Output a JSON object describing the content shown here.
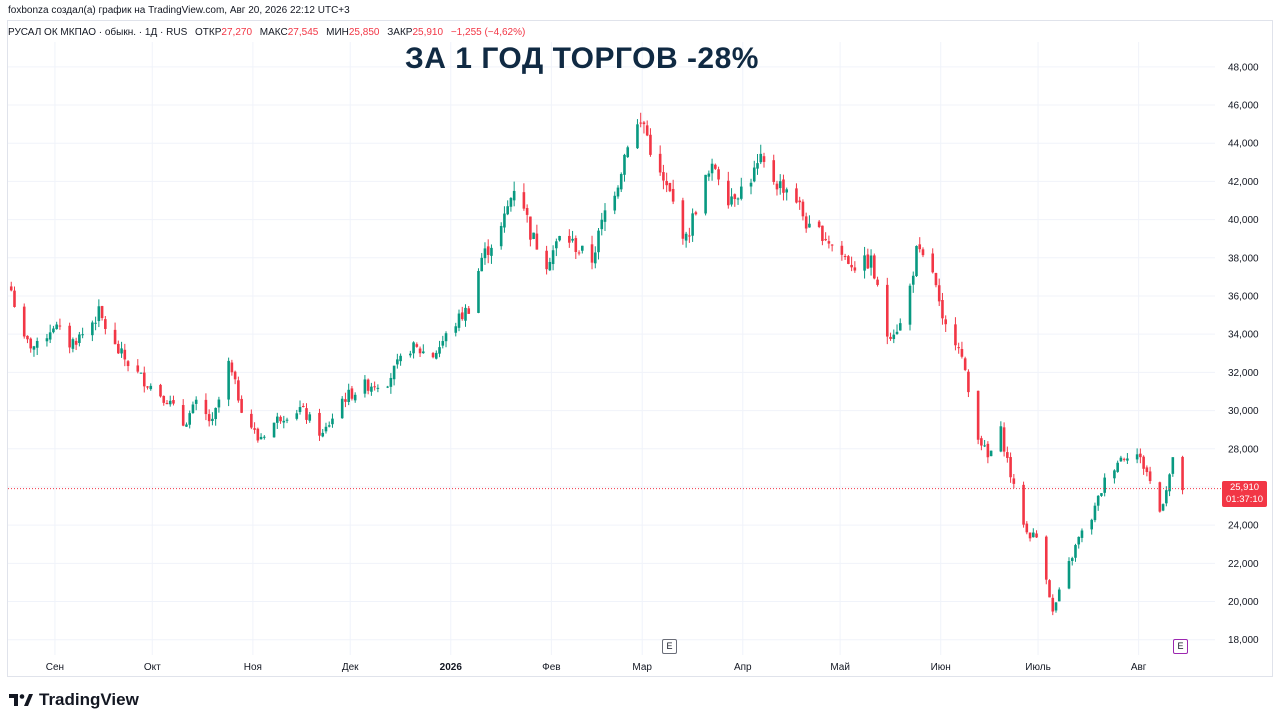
{
  "header": {
    "caption": "foxbonza создал(а) график на TradingView.com, Авг 20, 2026 22:12 UTC+3",
    "symbol": "РУСАЛ ОК МКПАО · обыкн. · 1Д · RUS",
    "open_label": "ОТКР",
    "open_value": "27,270",
    "high_label": "МАКС",
    "high_value": "27,545",
    "low_label": "МИН",
    "low_value": "25,850",
    "close_label": "ЗАКР",
    "close_value": "25,910",
    "change": "−1,255 (−4,62%)"
  },
  "headline": "ЗА 1 ГОД ТОРГОВ -28%",
  "price_label": {
    "price": "25,910",
    "countdown": "01:37:10"
  },
  "event_badge": "E",
  "brand": {
    "name": "TradingView"
  },
  "colors": {
    "up": "#089981",
    "down": "#f23645",
    "grid": "#f0f3fa",
    "axis_text": "#131722"
  },
  "chart_data": {
    "type": "candlestick",
    "title": "ЗА 1 ГОД ТОРГОВ -28%",
    "y_ticks": [
      "18,000",
      "20,000",
      "22,000",
      "24,000",
      "26,000",
      "28,000",
      "30,000",
      "32,000",
      "34,000",
      "36,000",
      "38,000",
      "40,000",
      "42,000",
      "44,000",
      "46,000",
      "48,000"
    ],
    "ylim": [
      17200,
      49300
    ],
    "x_ticks": [
      "Сен",
      "Окт",
      "Ноя",
      "Дек",
      "2026",
      "Фев",
      "Мар",
      "Апр",
      "Май",
      "Июн",
      "Июль",
      "Авг"
    ],
    "last_price": 25910,
    "close_path": [
      [
        "2025-08-21",
        36300
      ],
      [
        "2025-08-25",
        33600
      ],
      [
        "2025-08-29",
        33300
      ],
      [
        "2025-09-03",
        34500
      ],
      [
        "2025-09-08",
        33500
      ],
      [
        "2025-09-12",
        34000
      ],
      [
        "2025-09-17",
        35100
      ],
      [
        "2025-09-22",
        33300
      ],
      [
        "2025-09-29",
        31900
      ],
      [
        "2025-10-03",
        31300
      ],
      [
        "2025-10-08",
        30600
      ],
      [
        "2025-10-13",
        29300
      ],
      [
        "2025-10-17",
        30300
      ],
      [
        "2025-10-22",
        29300
      ],
      [
        "2025-10-27",
        32400
      ],
      [
        "2025-10-31",
        30200
      ],
      [
        "2025-11-05",
        28500
      ],
      [
        "2025-11-12",
        29700
      ],
      [
        "2025-11-18",
        30100
      ],
      [
        "2025-11-25",
        28700
      ],
      [
        "2025-12-01",
        30600
      ],
      [
        "2025-12-08",
        31300
      ],
      [
        "2025-12-15",
        31600
      ],
      [
        "2025-12-22",
        33300
      ],
      [
        "2025-12-29",
        32900
      ],
      [
        "2026-01-05",
        34600
      ],
      [
        "2026-01-09",
        35400
      ],
      [
        "2026-01-13",
        38000
      ],
      [
        "2026-01-19",
        39500
      ],
      [
        "2026-01-24",
        42300
      ],
      [
        "2026-01-28",
        39300
      ],
      [
        "2026-02-02",
        37800
      ],
      [
        "2026-02-07",
        39300
      ],
      [
        "2026-02-12",
        38400
      ],
      [
        "2026-02-16",
        37900
      ],
      [
        "2026-02-20",
        40400
      ],
      [
        "2026-02-24",
        42000
      ],
      [
        "2026-02-28",
        44800
      ],
      [
        "2026-03-04",
        45000
      ],
      [
        "2026-03-08",
        42500
      ],
      [
        "2026-03-12",
        41300
      ],
      [
        "2026-03-17",
        38900
      ],
      [
        "2026-03-22",
        41800
      ],
      [
        "2026-03-26",
        42800
      ],
      [
        "2026-03-30",
        41200
      ],
      [
        "2026-04-04",
        41700
      ],
      [
        "2026-04-09",
        43000
      ],
      [
        "2026-04-14",
        41900
      ],
      [
        "2026-04-19",
        41500
      ],
      [
        "2026-04-24",
        39400
      ],
      [
        "2026-04-28",
        39300
      ],
      [
        "2026-05-03",
        38300
      ],
      [
        "2026-05-08",
        37600
      ],
      [
        "2026-05-13",
        37800
      ],
      [
        "2026-05-18",
        34000
      ],
      [
        "2026-05-23",
        34600
      ],
      [
        "2026-05-27",
        38300
      ],
      [
        "2026-06-01",
        37300
      ],
      [
        "2026-06-04",
        34500
      ],
      [
        "2026-06-09",
        33600
      ],
      [
        "2026-06-14",
        29200
      ],
      [
        "2026-06-18",
        27500
      ],
      [
        "2026-06-22",
        28900
      ],
      [
        "2026-06-26",
        25900
      ],
      [
        "2026-06-30",
        23600
      ],
      [
        "2026-07-04",
        23300
      ],
      [
        "2026-07-08",
        19400
      ],
      [
        "2026-07-12",
        21500
      ],
      [
        "2026-07-16",
        23300
      ],
      [
        "2026-07-20",
        24400
      ],
      [
        "2026-07-24",
        26300
      ],
      [
        "2026-07-28",
        27400
      ],
      [
        "2026-08-02",
        28000
      ],
      [
        "2026-08-06",
        26800
      ],
      [
        "2026-08-10",
        24700
      ],
      [
        "2026-08-14",
        27300
      ],
      [
        "2026-08-17",
        25910
      ]
    ]
  }
}
